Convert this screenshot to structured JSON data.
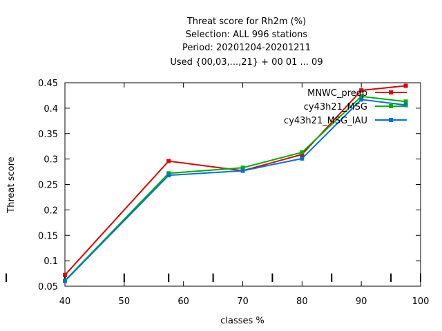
{
  "chart_data": {
    "type": "line",
    "title_lines": [
      "Threat score  for Rh2m (%)",
      "Selection: ALL    996 stations",
      "Period: 20201204-20201211",
      "Used {00,03,...,21} + 00 01 ... 09"
    ],
    "xlabel": "classes %",
    "ylabel": "Threat score",
    "xlim": [
      40,
      100
    ],
    "ylim": [
      0.05,
      0.45
    ],
    "x_ticks": [
      40,
      50,
      60,
      70,
      80,
      90,
      100
    ],
    "y_ticks": [
      0.05,
      0.1,
      0.15,
      0.2,
      0.25,
      0.3,
      0.35,
      0.4,
      0.45
    ],
    "x_tick_labels": [
      "40",
      "50",
      "60",
      "70",
      "80",
      "90",
      "100"
    ],
    "y_tick_labels": [
      "0.05",
      "0.1",
      "0.15",
      "0.2",
      "0.25",
      "0.3",
      "0.35",
      "0.4",
      "0.45"
    ],
    "extra_bottom_ticks": [
      40,
      50,
      57.5,
      65,
      75,
      85,
      95,
      100
    ],
    "grid": false,
    "legend_position": "top-right",
    "series": [
      {
        "name": "MNWC_preop",
        "color": "#e00000",
        "x": [
          40,
          57.5,
          70,
          80,
          90,
          97.5
        ],
        "y": [
          0.072,
          0.296,
          0.277,
          0.309,
          0.435,
          0.444
        ]
      },
      {
        "name": "cy43h21_MSG",
        "color": "#00b000",
        "x": [
          40,
          57.5,
          70,
          80,
          90,
          97.5
        ],
        "y": [
          0.061,
          0.272,
          0.283,
          0.313,
          0.423,
          0.413
        ]
      },
      {
        "name": "cy43h21_MSG_IAU",
        "color": "#0070e0",
        "x": [
          40,
          57.5,
          70,
          80,
          90,
          97.5
        ],
        "y": [
          0.06,
          0.268,
          0.277,
          0.301,
          0.417,
          0.406
        ]
      }
    ]
  }
}
